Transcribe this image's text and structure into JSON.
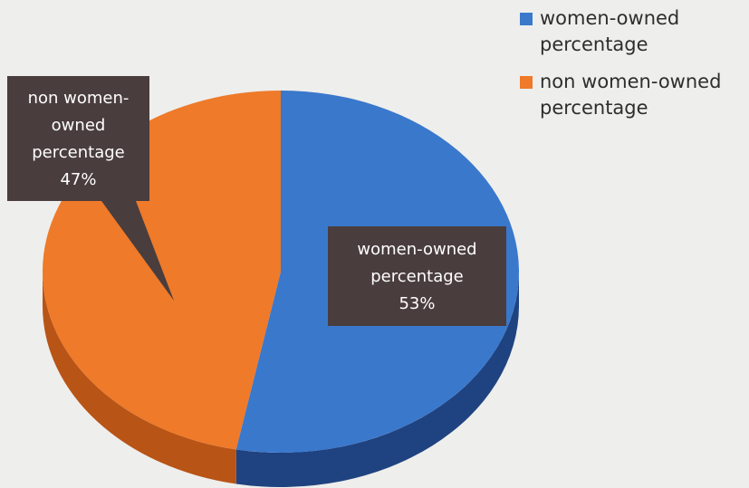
{
  "chart_data": {
    "type": "pie",
    "slices": [
      {
        "name": "women-owned percentage",
        "value": 53,
        "color": "#3a78cc",
        "side_color": "#1f4380",
        "label_lines": [
          "women-owned",
          "percentage",
          "53%"
        ]
      },
      {
        "name": "non women-owned percentage",
        "value": 47,
        "color": "#ee7a2a",
        "side_color": "#b85416",
        "label_lines": [
          "non women-",
          "owned",
          "percentage",
          "47%"
        ]
      }
    ],
    "legend": {
      "position": "top-right",
      "items": [
        {
          "label": "women-owned percentage",
          "color": "#3a78cc"
        },
        {
          "label": "non women-owned percentage",
          "color": "#ee7a2a"
        }
      ]
    },
    "callout_color": "#4a3d3d"
  }
}
